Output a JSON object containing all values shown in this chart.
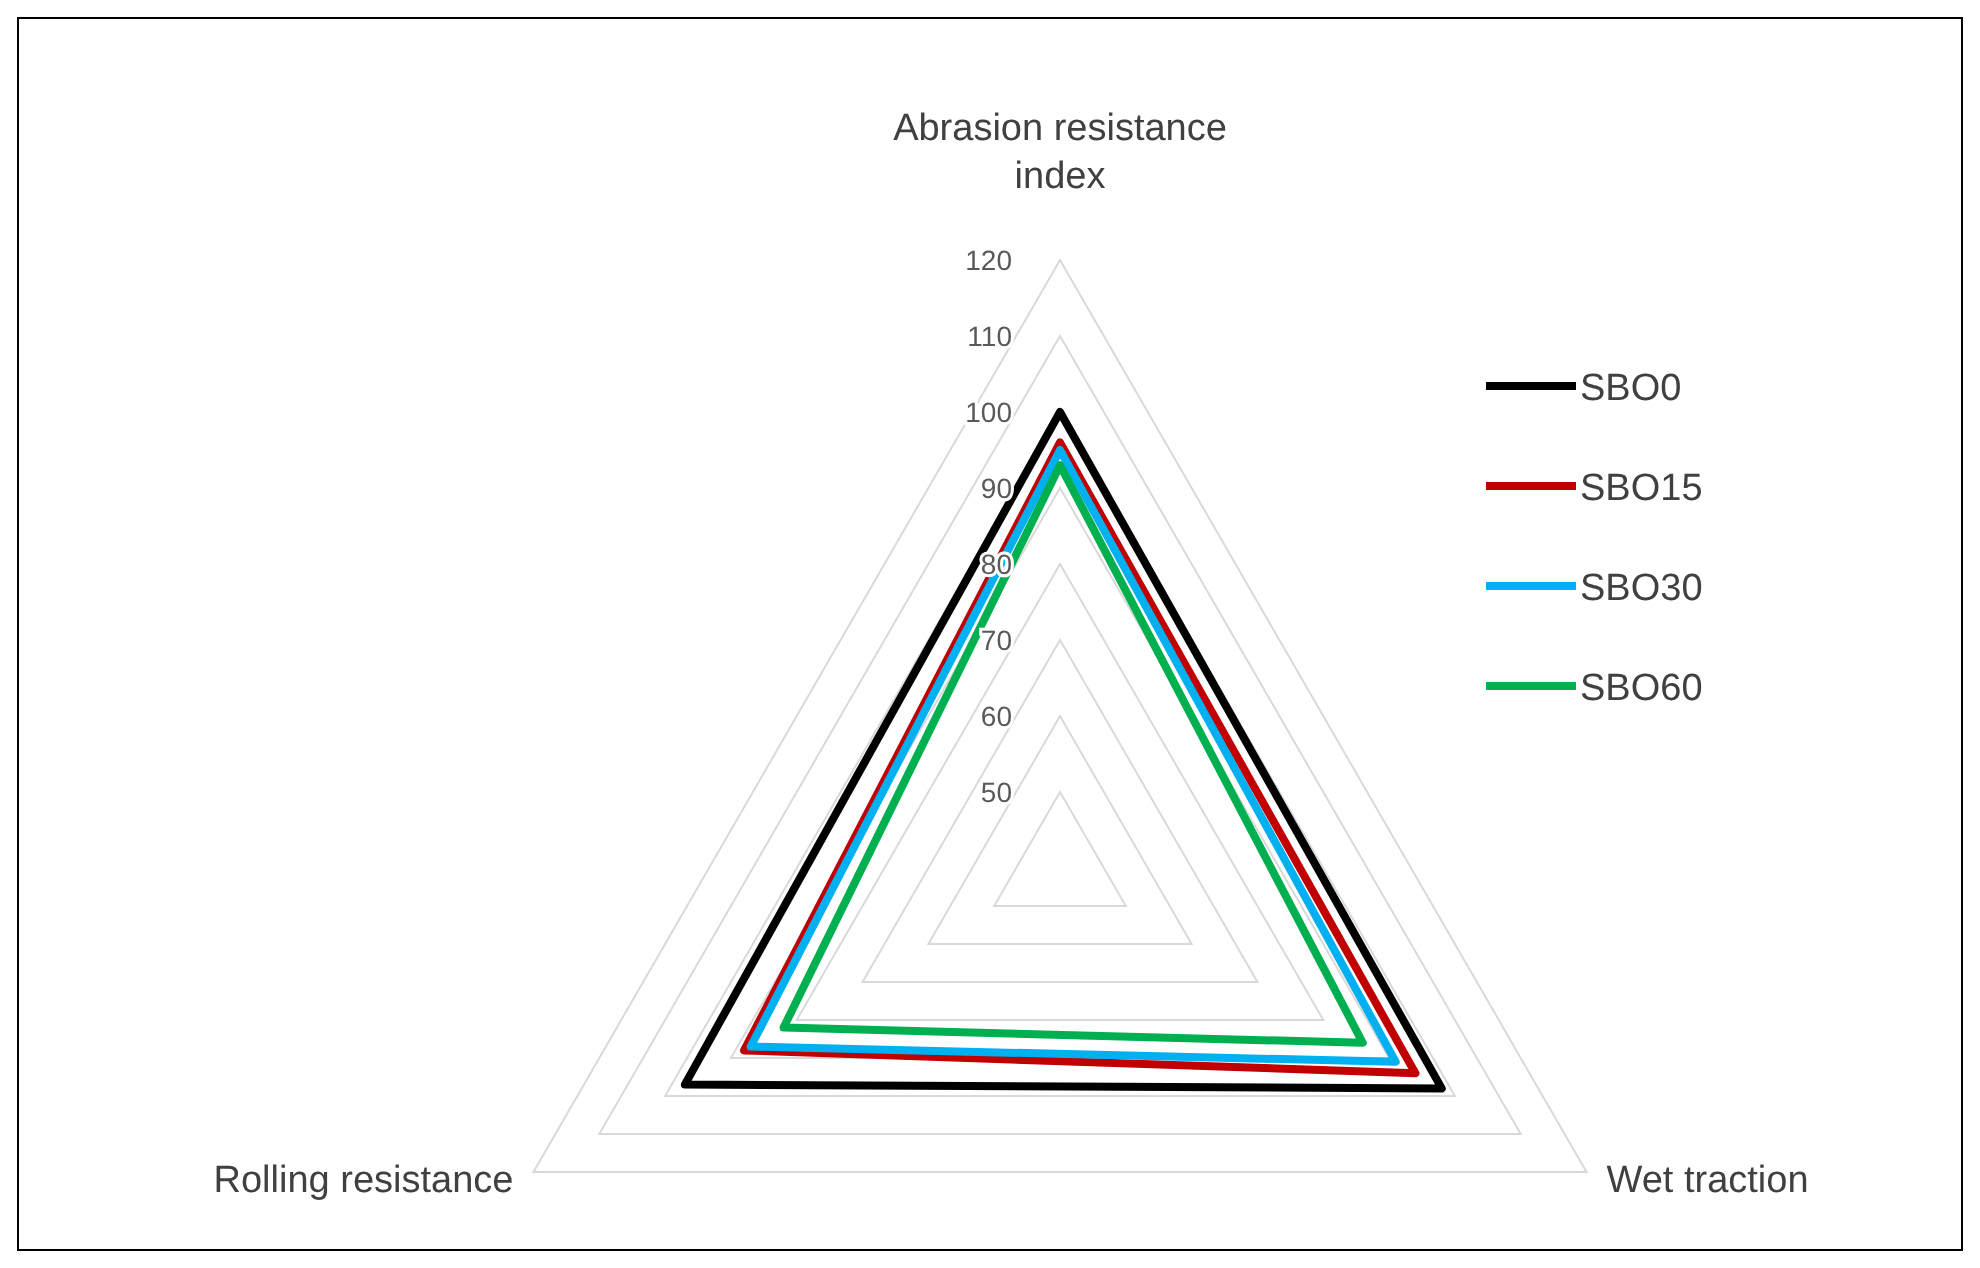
{
  "chart_data": {
    "type": "radar",
    "categories": [
      "Abrasion resistance index",
      "Wet traction",
      "Rolling resistance"
    ],
    "series": [
      {
        "name": "SBO0",
        "color": "#000000",
        "values": [
          100,
          98,
          97
        ]
      },
      {
        "name": "SBO15",
        "color": "#c00000",
        "values": [
          96,
          94,
          88
        ]
      },
      {
        "name": "SBO30",
        "color": "#00b0f0",
        "values": [
          95,
          91,
          87
        ]
      },
      {
        "name": "SBO60",
        "color": "#00b050",
        "values": [
          93,
          86,
          82
        ]
      }
    ],
    "ylim": [
      40,
      120
    ],
    "yticks": [
      50,
      60,
      70,
      80,
      90,
      100,
      110,
      120
    ],
    "grid": true,
    "legend": "right"
  }
}
